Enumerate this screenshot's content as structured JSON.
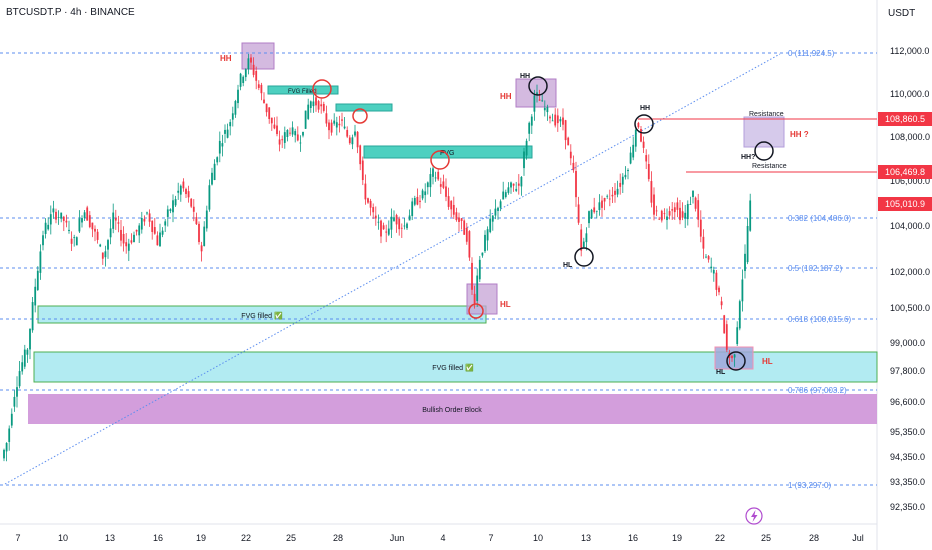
{
  "header": {
    "symbol_line": "BTCUSDT.P · 4h · BINANCE",
    "currency": "USDT"
  },
  "colors": {
    "bull": "#089981",
    "bear": "#f23645",
    "fib": "#5b8def",
    "fvg_fill": "#b2ebf2",
    "fvg_border": "#4caf50",
    "ob_fill": "#ce93d8",
    "zone_fill": "#c5a3d6",
    "resistance": "#f23645",
    "price_tag": "#f23645"
  },
  "chart_data": {
    "type": "candlestick",
    "title": "BTCUSDT.P · 4h · BINANCE",
    "y_axis": {
      "range": [
        91800,
        113800
      ],
      "tick_labels": [
        "112,000.0",
        "110,000.0",
        "108,000.0",
        "106,000.0",
        "104,000.0",
        "102,000.0",
        "100,500.0",
        "99,000.0",
        "97,800.0",
        "96,600.0",
        "95,350.0",
        "94,350.0",
        "93,350.0",
        "92,350.0"
      ]
    },
    "x_axis": {
      "tick_labels": [
        "7",
        "10",
        "13",
        "16",
        "19",
        "22",
        "25",
        "28",
        "Jun",
        "4",
        "7",
        "10",
        "13",
        "16",
        "19",
        "22",
        "25",
        "28",
        "Jul"
      ]
    },
    "fib_levels": [
      {
        "label": "0 (111,924.5)",
        "value": 111924.5
      },
      {
        "label": "0.382 (104,406.0)",
        "value": 104406.0
      },
      {
        "label": "0.5 (102,187.2)",
        "value": 102187.2
      },
      {
        "label": "0.618 (100,015.6)",
        "value": 100015.6
      },
      {
        "label": "0.786 (97,003.2)",
        "value": 97003.2
      },
      {
        "label": "1 (93,297.0)",
        "value": 93297.0
      }
    ],
    "resistance_levels": [
      {
        "label": "Resistance",
        "value": 108860.5,
        "tag": "108,860.5"
      },
      {
        "label": "Resistance",
        "value": 106469.8,
        "tag": "106,469.8"
      }
    ],
    "last_price": {
      "value": 105010.9,
      "tag": "105,010.9"
    },
    "zones": [
      {
        "label": "FVG filled ✅",
        "kind": "fvg"
      },
      {
        "label": "FVG filled ✅",
        "kind": "fvg"
      },
      {
        "label": "Bullish Order Block",
        "kind": "ob"
      },
      {
        "label": "FVG Filled",
        "kind": "fvg"
      },
      {
        "label": "FVG",
        "kind": "fvg"
      }
    ],
    "swing_labels": [
      {
        "label": "HH",
        "color": "red"
      },
      {
        "label": "HH",
        "color": "red"
      },
      {
        "label": "HH",
        "color": "black"
      },
      {
        "label": "HH",
        "color": "black"
      },
      {
        "label": "HL",
        "color": "red"
      },
      {
        "label": "HL",
        "color": "black"
      },
      {
        "label": "HL",
        "color": "red"
      },
      {
        "label": "HL",
        "color": "black"
      },
      {
        "label": "HH ?",
        "color": "red"
      },
      {
        "label": "HH?",
        "color": "black"
      }
    ]
  }
}
